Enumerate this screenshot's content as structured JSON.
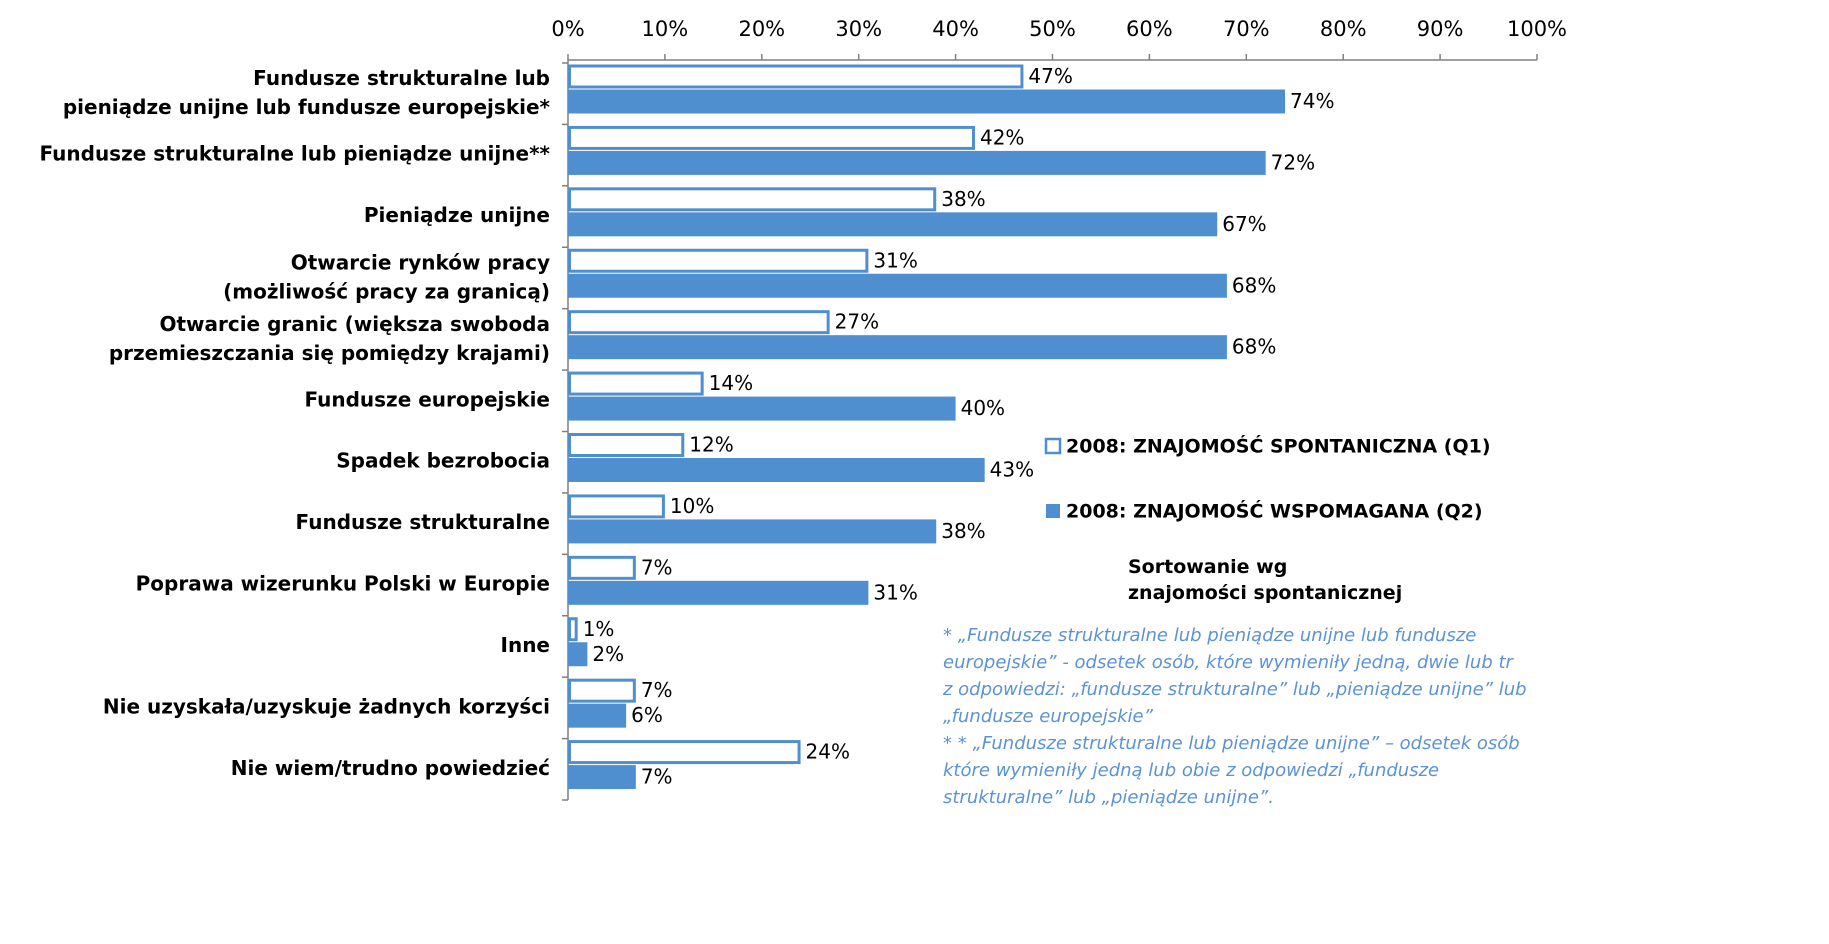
{
  "chart_data": {
    "type": "bar",
    "orientation": "horizontal",
    "categories": [
      "Fundusze strukturalne lub\npieniądze unijne lub fundusze europejskie*",
      "Fundusze strukturalne lub pieniądze unijne**",
      "Pieniądze unijne",
      "Otwarcie rynków pracy\n(możliwość pracy za granicą)",
      "Otwarcie granic (większa swoboda\nprzemieszczania się pomiędzy krajami)",
      "Fundusze europejskie",
      "Spadek bezrobocia",
      "Fundusze strukturalne",
      "Poprawa wizerunku Polski w Europie",
      "Inne",
      "Nie uzyskała/uzyskuje żadnych korzyści",
      "Nie wiem/trudno powiedzieć"
    ],
    "series": [
      {
        "name": "2008: ZNAJOMOŚĆ SPONTANICZNA (Q1)",
        "color": "#ffffff",
        "stroke": "#4f8fd0",
        "values": [
          47,
          42,
          38,
          31,
          27,
          14,
          12,
          10,
          7,
          1,
          7,
          24
        ],
        "value_labels": [
          "47%",
          "42%",
          "38%",
          "31%",
          "27%",
          "14%",
          "12%",
          "10%",
          "7%",
          "1%",
          "7%",
          "24%"
        ]
      },
      {
        "name": "2008: ZNAJOMOŚĆ WSPOMAGANA (Q2)",
        "color": "#4f8fd0",
        "values": [
          74,
          72,
          67,
          68,
          68,
          40,
          43,
          38,
          31,
          2,
          6,
          7
        ],
        "value_labels": [
          "74%",
          "72%",
          "67%",
          "68%",
          "68%",
          "40%",
          "43%",
          "38%",
          "31%",
          "2%",
          "6%",
          "7%"
        ]
      }
    ],
    "xlim": [
      0,
      100
    ],
    "xticks": [
      {
        "value": 0,
        "label": "0%"
      },
      {
        "value": 10,
        "label": "10%"
      },
      {
        "value": 20,
        "label": "20%"
      },
      {
        "value": 30,
        "label": "30%"
      },
      {
        "value": 40,
        "label": "40%"
      },
      {
        "value": 50,
        "label": "50%"
      },
      {
        "value": 60,
        "label": "60%"
      },
      {
        "value": 70,
        "label": "70%"
      },
      {
        "value": 80,
        "label": "80%"
      },
      {
        "value": 90,
        "label": "90%"
      },
      {
        "value": 100,
        "label": "100%"
      }
    ],
    "annotation": "Sortowanie wg\nznajomości spontanicznej",
    "footnotes": [
      "* „Fundusze strukturalne lub pieniądze unijne lub fundusze",
      "europejskie” - odsetek osób, które wymieniły jedną, dwie lub tr",
      "z odpowiedzi: „fundusze strukturalne” lub „pieniądze unijne” lub",
      "„fundusze europejskie”",
      "* * „Fundusze strukturalne lub pieniądze unijne” – odsetek osób",
      "które wymieniły jedną lub obie z odpowiedzi „fundusze",
      "strukturalne” lub „pieniądze unijne”."
    ]
  }
}
